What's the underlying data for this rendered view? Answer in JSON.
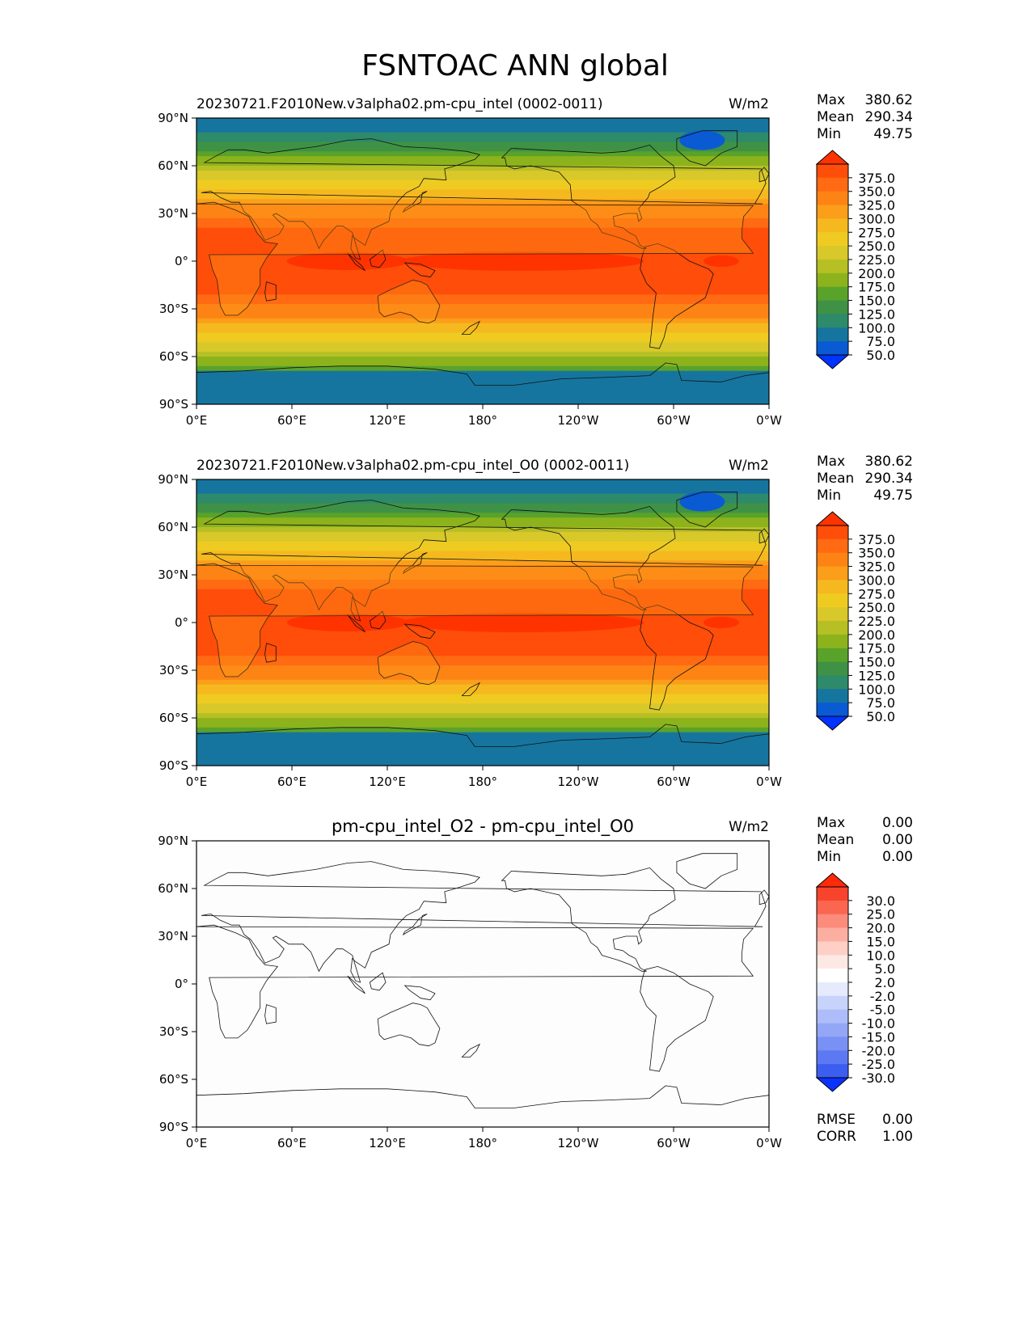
{
  "figure_title": "FSNTOAC ANN global",
  "chart_data": [
    {
      "type": "heatmap",
      "title": "20230721.F2010New.v3alpha02.pm-cpu_intel (0002-0011)",
      "units": "W/m2",
      "stats": [
        {
          "label": "Max",
          "value": "380.62"
        },
        {
          "label": "Mean",
          "value": "290.34"
        },
        {
          "label": "Min",
          "value": "49.75"
        }
      ],
      "colorbar_levels": [
        "375.0",
        "350.0",
        "325.0",
        "300.0",
        "275.0",
        "250.0",
        "225.0",
        "200.0",
        "175.0",
        "150.0",
        "125.0",
        "100.0",
        "75.0",
        "50.0"
      ],
      "colorbar_colors": [
        "#ff3300",
        "#ff4d0a",
        "#ff6a12",
        "#fd8414",
        "#fb9e1a",
        "#f5b91f",
        "#efcb22",
        "#d8c82a",
        "#b6c025",
        "#8cb31c",
        "#5aa32a",
        "#3f9245",
        "#2d8a6a",
        "#16759e",
        "#0a5ad4",
        "#0033ff"
      ],
      "xticks": [
        "0°E",
        "60°E",
        "120°E",
        "180°",
        "120°W",
        "60°W",
        "0°W"
      ],
      "yticks": [
        "90°N",
        "60°N",
        "30°N",
        "0°",
        "30°S",
        "60°S",
        "90°S"
      ],
      "xlim": [
        0,
        360
      ],
      "ylim": [
        -90,
        90
      ]
    },
    {
      "type": "heatmap",
      "title": "20230721.F2010New.v3alpha02.pm-cpu_intel_O0 (0002-0011)",
      "units": "W/m2",
      "stats": [
        {
          "label": "Max",
          "value": "380.62"
        },
        {
          "label": "Mean",
          "value": "290.34"
        },
        {
          "label": "Min",
          "value": "49.75"
        }
      ],
      "colorbar_levels": [
        "375.0",
        "350.0",
        "325.0",
        "300.0",
        "275.0",
        "250.0",
        "225.0",
        "200.0",
        "175.0",
        "150.0",
        "125.0",
        "100.0",
        "75.0",
        "50.0"
      ],
      "colorbar_colors": [
        "#ff3300",
        "#ff4d0a",
        "#ff6a12",
        "#fd8414",
        "#fb9e1a",
        "#f5b91f",
        "#efcb22",
        "#d8c82a",
        "#b6c025",
        "#8cb31c",
        "#5aa32a",
        "#3f9245",
        "#2d8a6a",
        "#16759e",
        "#0a5ad4",
        "#0033ff"
      ],
      "xticks": [
        "0°E",
        "60°E",
        "120°E",
        "180°",
        "120°W",
        "60°W",
        "0°W"
      ],
      "yticks": [
        "90°N",
        "60°N",
        "30°N",
        "0°",
        "30°S",
        "60°S",
        "90°S"
      ],
      "xlim": [
        0,
        360
      ],
      "ylim": [
        -90,
        90
      ]
    },
    {
      "type": "heatmap",
      "title": "pm-cpu_intel_O2 - pm-cpu_intel_O0",
      "units": "W/m2",
      "stats": [
        {
          "label": "Max",
          "value": "0.00"
        },
        {
          "label": "Mean",
          "value": "0.00"
        },
        {
          "label": "Min",
          "value": "0.00"
        }
      ],
      "colorbar_levels": [
        "30.0",
        "25.0",
        "20.0",
        "15.0",
        "10.0",
        "5.0",
        "2.0",
        "-2.0",
        "-5.0",
        "-10.0",
        "-15.0",
        "-20.0",
        "-25.0",
        "-30.0"
      ],
      "colorbar_colors": [
        "#ff2a0a",
        "#f8442c",
        "#fb6650",
        "#fb8c7b",
        "#fcaea0",
        "#fdcfc5",
        "#fde9e4",
        "#ffffff",
        "#e5ebfd",
        "#c8d3fb",
        "#aebdf9",
        "#93a7f6",
        "#7990f4",
        "#5c78f2",
        "#3c5ef0",
        "#0a32ff"
      ],
      "xticks": [
        "0°E",
        "60°E",
        "120°E",
        "180°",
        "120°W",
        "60°W",
        "0°W"
      ],
      "yticks": [
        "90°N",
        "60°N",
        "30°N",
        "0°",
        "30°S",
        "60°S",
        "90°S"
      ],
      "xlim": [
        0,
        360
      ],
      "ylim": [
        -90,
        90
      ],
      "metrics": [
        {
          "label": "RMSE",
          "value": "0.00"
        },
        {
          "label": "CORR",
          "value": "1.00"
        }
      ]
    }
  ]
}
